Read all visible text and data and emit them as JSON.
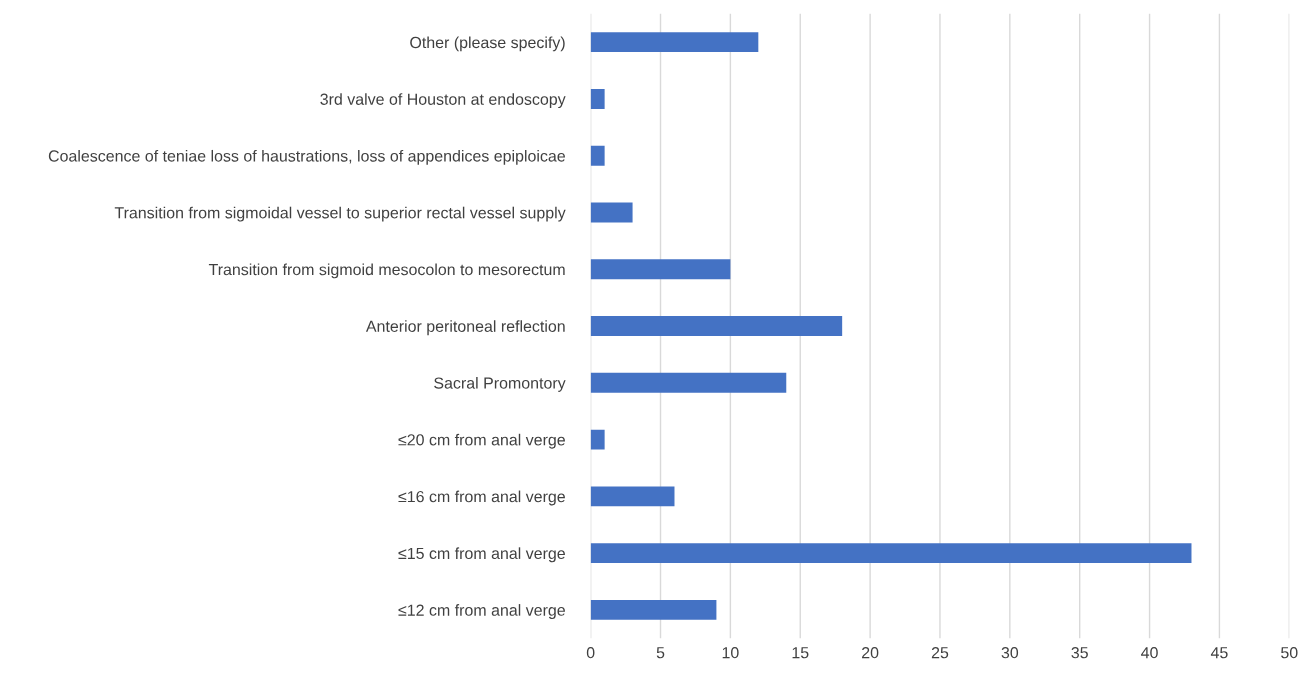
{
  "chart_data": {
    "type": "bar",
    "orientation": "horizontal",
    "categories": [
      "Other (please specify)",
      "3rd valve of Houston at endoscopy",
      "Coalescence of teniae loss of haustrations, loss of appendices epiploicae",
      "Transition from sigmoidal vessel to superior rectal vessel supply",
      "Transition from sigmoid mesocolon to mesorectum",
      "Anterior peritoneal reflection",
      "Sacral Promontory",
      "≤20 cm from anal verge",
      "≤16 cm from anal verge",
      "≤15 cm from anal verge",
      "≤12 cm from anal verge"
    ],
    "values": [
      12,
      1,
      1,
      3,
      10,
      18,
      14,
      1,
      6,
      43,
      9
    ],
    "color": "#4472c4",
    "xlim": [
      0,
      50
    ],
    "xticks": [
      0,
      5,
      10,
      15,
      20,
      25,
      30,
      35,
      40,
      45,
      50
    ],
    "grid": "x"
  }
}
